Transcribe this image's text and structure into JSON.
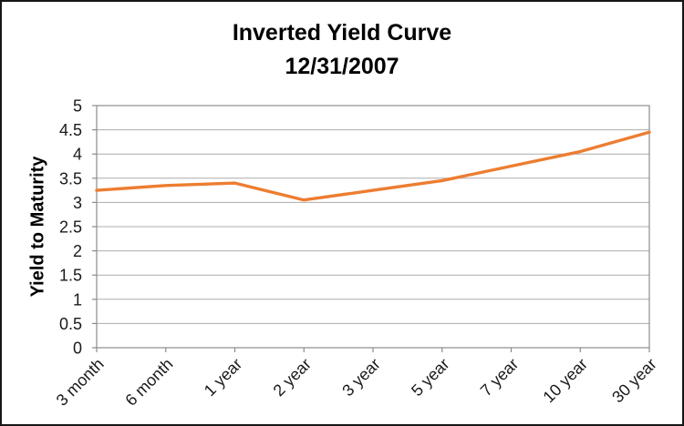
{
  "title": {
    "line1": "Inverted Yield Curve",
    "line2": "12/31/2007"
  },
  "chart_data": {
    "type": "line",
    "title": "Inverted Yield Curve 12/31/2007",
    "categories": [
      "3 month",
      "6 month",
      "1 year",
      "2 year",
      "3 year",
      "5 year",
      "7 year",
      "10 year",
      "30 year"
    ],
    "series": [
      {
        "name": "Yield to Maturity 12/31/2007",
        "values": [
          3.25,
          3.35,
          3.4,
          3.05,
          3.25,
          3.45,
          3.75,
          4.05,
          4.45
        ]
      }
    ],
    "xlabel": "",
    "ylabel": "Yield to Maturity",
    "ylim": [
      0,
      5
    ],
    "yticks": [
      0,
      0.5,
      1,
      1.5,
      2,
      2.5,
      3,
      3.5,
      4,
      4.5,
      5
    ],
    "grid": true,
    "legend": false,
    "x_label_rotation_deg": -45
  },
  "colors": {
    "line": "#ED7D31",
    "gridline": "#ACACAC",
    "axis": "#8C8C8C",
    "tick_text": "#1a1a1a",
    "title_text": "#000000",
    "background": "#FFFFFF",
    "frame_border": "#161616"
  }
}
